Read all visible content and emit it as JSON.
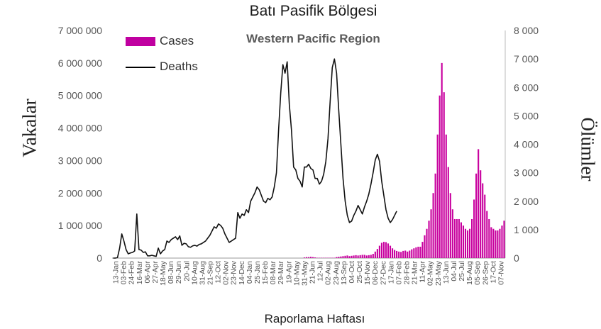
{
  "chart_data": {
    "type": "bar+line",
    "title": "Batı Pasifik Bölgesi",
    "subtitle": "Western Pacific Region",
    "xlabel": "Raporlama Haftası",
    "ylabel_left": "Vakalar",
    "ylabel_right": "Ölümler",
    "ylim_left": [
      0,
      7000000
    ],
    "ylim_right": [
      0,
      8000
    ],
    "yticks_left": [
      "0",
      "1 000 000",
      "2 000 000",
      "3 000 000",
      "4 000 000",
      "5 000 000",
      "6 000 000",
      "7 000 000"
    ],
    "yticks_right": [
      "0",
      "1 000",
      "2 000",
      "3 000",
      "4 000",
      "5 000",
      "6 000",
      "7 000",
      "8 000"
    ],
    "xticks": [
      "13-Jan",
      "03-Feb",
      "24-Feb",
      "16-Mar",
      "06-Apr",
      "27-Apr",
      "18-May",
      "08-Jun",
      "29-Jun",
      "20-Jul",
      "10-Aug",
      "31-Aug",
      "21-Sep",
      "12-Oct",
      "02-Nov",
      "23-Nov",
      "14-Dec",
      "04-Jan",
      "25-Jan",
      "15-Feb",
      "08-Mar",
      "29-Mar",
      "19-Apr",
      "10-May",
      "31-May",
      "21-Jun",
      "12-Jul",
      "02-Aug",
      "23-Aug",
      "13-Sep",
      "04-Oct",
      "25-Oct",
      "15-Nov",
      "06-Dec",
      "27-Dec",
      "17-Jan",
      "07-Feb",
      "28-Feb",
      "21-Mar",
      "11-Apr",
      "02-May",
      "23-May",
      "13-Jun",
      "04-Jul",
      "25-Jul",
      "15-Aug",
      "05-Sep",
      "26-Sep",
      "17-Oct",
      "07-Nov"
    ],
    "legend": [
      {
        "name": "Cases",
        "color": "#c000a0"
      },
      {
        "name": "Deaths",
        "color": "#000000"
      }
    ],
    "cases": [
      0,
      0,
      0,
      0,
      0,
      0,
      0,
      0,
      0,
      0,
      0,
      0,
      0,
      0,
      0,
      0,
      0,
      0,
      0,
      0,
      0,
      0,
      0,
      0,
      0,
      0,
      0,
      0,
      0,
      0,
      0,
      0,
      0,
      0,
      0,
      0,
      0,
      0,
      0,
      0,
      0,
      0,
      0,
      0,
      0,
      0,
      0,
      0,
      0,
      0,
      0,
      0,
      0,
      0,
      0,
      0,
      0,
      0,
      0,
      0,
      0,
      0,
      0,
      0,
      0,
      0,
      0,
      0,
      0,
      0,
      0,
      0,
      0,
      0,
      0,
      0,
      0,
      0,
      0,
      0,
      0,
      0,
      0,
      0,
      0,
      0,
      0,
      0,
      0,
      20000,
      30000,
      30000,
      40000,
      30000,
      20000,
      10000,
      10000,
      10000,
      10000,
      10000,
      10000,
      10000,
      10000,
      10000,
      30000,
      40000,
      50000,
      60000,
      70000,
      80000,
      60000,
      70000,
      80000,
      90000,
      80000,
      90000,
      100000,
      100000,
      80000,
      90000,
      100000,
      130000,
      200000,
      280000,
      380000,
      470000,
      500000,
      490000,
      450000,
      380000,
      300000,
      250000,
      220000,
      200000,
      190000,
      220000,
      230000,
      200000,
      230000,
      270000,
      300000,
      330000,
      350000,
      350000,
      500000,
      700000,
      900000,
      1150000,
      1500000,
      2000000,
      2600000,
      3800000,
      5000000,
      6000000,
      5100000,
      3800000,
      2800000,
      2000000,
      1500000,
      1200000,
      1200000,
      1200000,
      1100000,
      1000000,
      900000,
      850000,
      900000,
      1200000,
      1800000,
      2600000,
      3350000,
      2700000,
      2300000,
      1950000,
      1450000,
      1200000,
      950000,
      900000,
      850000,
      850000,
      900000,
      1000000,
      1150000
    ],
    "deaths": [
      0,
      0,
      20,
      350,
      850,
      600,
      300,
      150,
      180,
      200,
      250,
      1550,
      300,
      280,
      200,
      220,
      80,
      80,
      100,
      80,
      60,
      350,
      150,
      250,
      300,
      600,
      550,
      650,
      700,
      750,
      650,
      780,
      450,
      520,
      500,
      400,
      380,
      430,
      450,
      420,
      480,
      500,
      550,
      600,
      700,
      800,
      950,
      1100,
      1050,
      1200,
      1150,
      1050,
      850,
      700,
      550,
      600,
      650,
      700,
      1600,
      1400,
      1550,
      1500,
      1700,
      1600,
      2000,
      2150,
      2300,
      2500,
      2400,
      2200,
      2000,
      1950,
      2100,
      2050,
      2150,
      2500,
      3000,
      4500,
      5800,
      6800,
      6500,
      6900,
      5400,
      4500,
      3200,
      3100,
      2800,
      2700,
      2500,
      3200,
      3200,
      3300,
      3150,
      3100,
      2800,
      2800,
      2600,
      2700,
      2950,
      3400,
      4200,
      5500,
      6700,
      7000,
      6500,
      5200,
      4000,
      2800,
      2000,
      1500,
      1250,
      1300,
      1500,
      1650,
      1850,
      1700,
      1550,
      1800,
      2000,
      2250,
      2600,
      3000,
      3450,
      3650,
      3400,
      2700,
      2200,
      1700,
      1400,
      1250,
      1350,
      1500,
      1650
    ]
  }
}
